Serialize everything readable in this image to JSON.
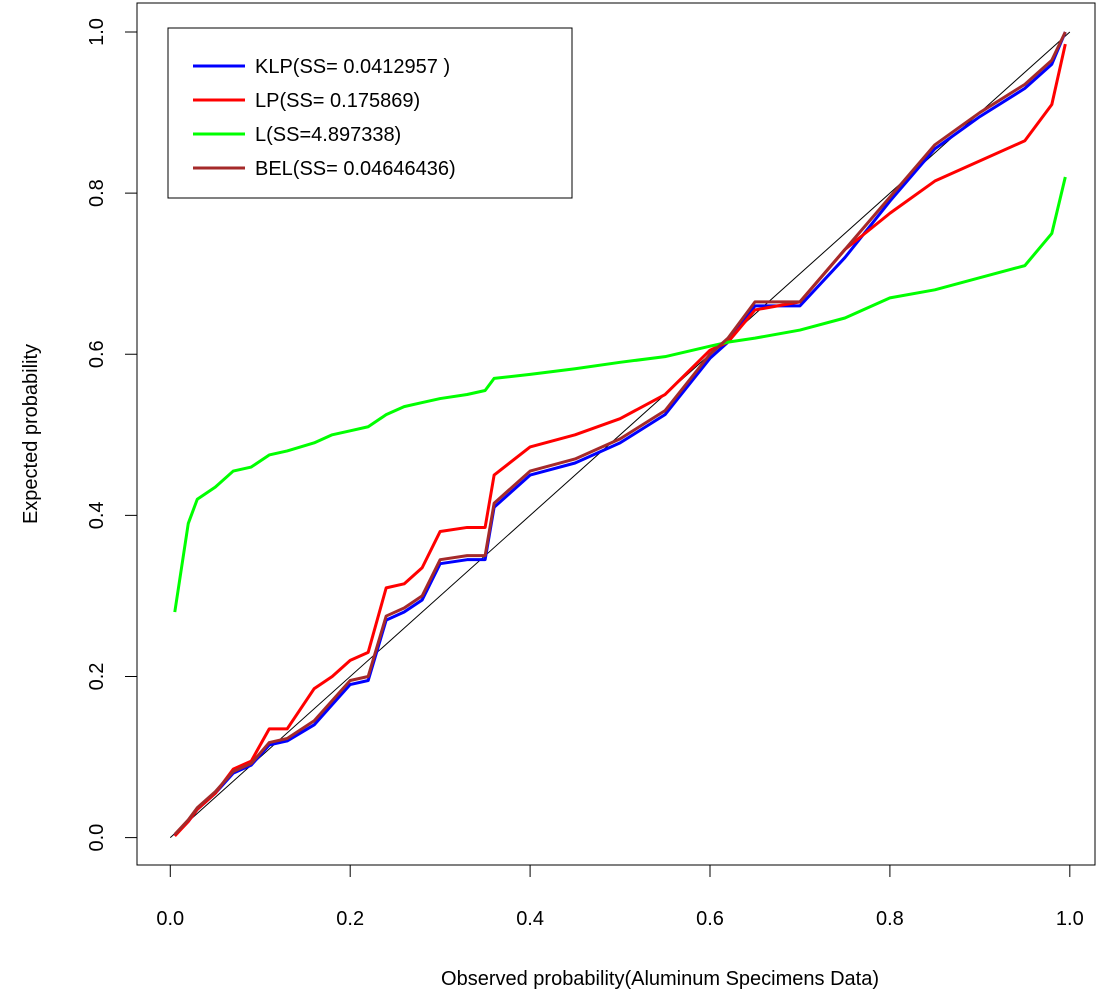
{
  "chart_data": {
    "type": "line",
    "xlabel": "Observed probability(Aluminum Specimens Data)",
    "ylabel": "Expected probability",
    "x": [
      0.005,
      0.02,
      0.03,
      0.05,
      0.07,
      0.09,
      0.11,
      0.13,
      0.16,
      0.18,
      0.2,
      0.22,
      0.24,
      0.26,
      0.28,
      0.3,
      0.33,
      0.35,
      0.36,
      0.4,
      0.45,
      0.5,
      0.55,
      0.6,
      0.62,
      0.65,
      0.7,
      0.75,
      0.8,
      0.85,
      0.9,
      0.95,
      0.98,
      0.995
    ],
    "series": [
      {
        "name": "KLP(SS= 0.0412957 )",
        "color": "#0000ff",
        "values": [
          0.003,
          0.02,
          0.035,
          0.055,
          0.08,
          0.09,
          0.115,
          0.12,
          0.14,
          0.165,
          0.19,
          0.195,
          0.27,
          0.28,
          0.295,
          0.34,
          0.345,
          0.345,
          0.41,
          0.45,
          0.465,
          0.49,
          0.525,
          0.595,
          0.615,
          0.66,
          0.66,
          0.72,
          0.79,
          0.855,
          0.895,
          0.93,
          0.96,
          1.0
        ]
      },
      {
        "name": "LP(SS= 0.175869)",
        "color": "#ff0000",
        "values": [
          0.002,
          0.02,
          0.035,
          0.055,
          0.085,
          0.095,
          0.135,
          0.135,
          0.185,
          0.2,
          0.22,
          0.23,
          0.31,
          0.315,
          0.335,
          0.38,
          0.385,
          0.385,
          0.45,
          0.485,
          0.5,
          0.52,
          0.55,
          0.605,
          0.615,
          0.655,
          0.665,
          0.73,
          0.775,
          0.815,
          0.84,
          0.865,
          0.91,
          0.985
        ]
      },
      {
        "name": "L(SS=4.897338)",
        "color": "#00ff00",
        "values": [
          0.28,
          0.39,
          0.42,
          0.435,
          0.455,
          0.46,
          0.475,
          0.48,
          0.49,
          0.5,
          0.505,
          0.51,
          0.525,
          0.535,
          0.54,
          0.545,
          0.55,
          0.555,
          0.57,
          0.575,
          0.582,
          0.59,
          0.597,
          0.61,
          0.615,
          0.62,
          0.63,
          0.645,
          0.67,
          0.68,
          0.695,
          0.71,
          0.75,
          0.82
        ]
      },
      {
        "name": "BEL(SS= 0.04646436)",
        "color": "#a52a2a",
        "values": [
          0.004,
          0.022,
          0.037,
          0.057,
          0.082,
          0.092,
          0.118,
          0.123,
          0.145,
          0.17,
          0.195,
          0.2,
          0.275,
          0.285,
          0.3,
          0.345,
          0.35,
          0.35,
          0.415,
          0.455,
          0.47,
          0.495,
          0.53,
          0.6,
          0.62,
          0.665,
          0.665,
          0.73,
          0.795,
          0.86,
          0.9,
          0.935,
          0.965,
          1.0
        ]
      }
    ],
    "reference_line": {
      "x": [
        0,
        1
      ],
      "y": [
        0,
        1
      ],
      "color": "#000000"
    },
    "xlim": [
      -0.037,
      1.028
    ],
    "ylim": [
      -0.034,
      1.036
    ],
    "xticks": [
      {
        "value": 0,
        "label": "0.0"
      },
      0.2,
      0.4,
      0.6,
      0.8,
      {
        "value": 1,
        "label": "1.0"
      }
    ],
    "yticks": [
      {
        "value": 0,
        "label": "0.0"
      },
      0.2,
      0.4,
      0.6,
      0.8,
      {
        "value": 1,
        "label": "1.0"
      }
    ],
    "legend": "top-left"
  }
}
